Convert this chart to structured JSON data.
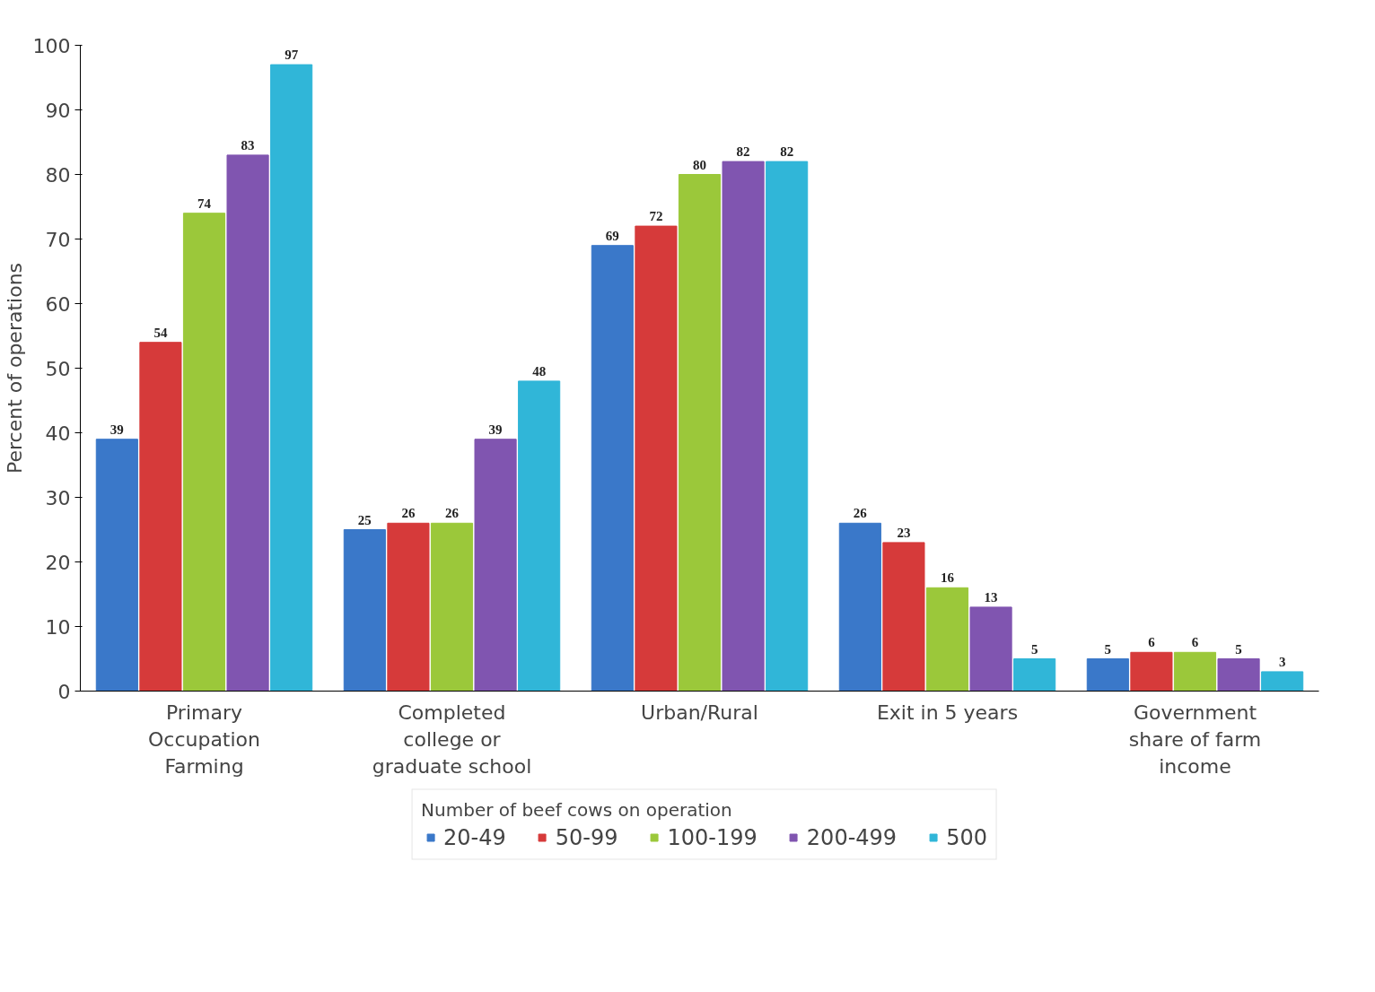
{
  "chart_data": {
    "type": "bar",
    "ylabel": "Percent of operations",
    "categories": [
      "Primary\nOccupation\nFarming",
      "Completed\ncollege or\ngraduate school",
      "Urban/Rural",
      "Exit in 5 years",
      "Government\nshare of farm\nincome"
    ],
    "legend_title": "Number of beef cows on operation",
    "series": [
      {
        "name": "20-49",
        "color": "#3a78c9",
        "values": [
          39,
          25,
          69,
          26,
          5
        ]
      },
      {
        "name": "50-99",
        "color": "#d63a3a",
        "values": [
          54,
          26,
          72,
          23,
          6
        ]
      },
      {
        "name": "100-199",
        "color": "#9bc83a",
        "values": [
          74,
          26,
          80,
          16,
          6
        ]
      },
      {
        "name": "200-499",
        "color": "#8055b0",
        "values": [
          83,
          39,
          82,
          13,
          5
        ]
      },
      {
        "name": "500",
        "color": "#30b6d8",
        "values": [
          97,
          48,
          82,
          5,
          3
        ]
      }
    ],
    "ylim": [
      0,
      100
    ],
    "yticks": [
      0,
      10,
      20,
      30,
      40,
      50,
      60,
      70,
      80,
      90,
      100
    ],
    "data_labels": true,
    "grid": false,
    "legend": "bottom"
  }
}
